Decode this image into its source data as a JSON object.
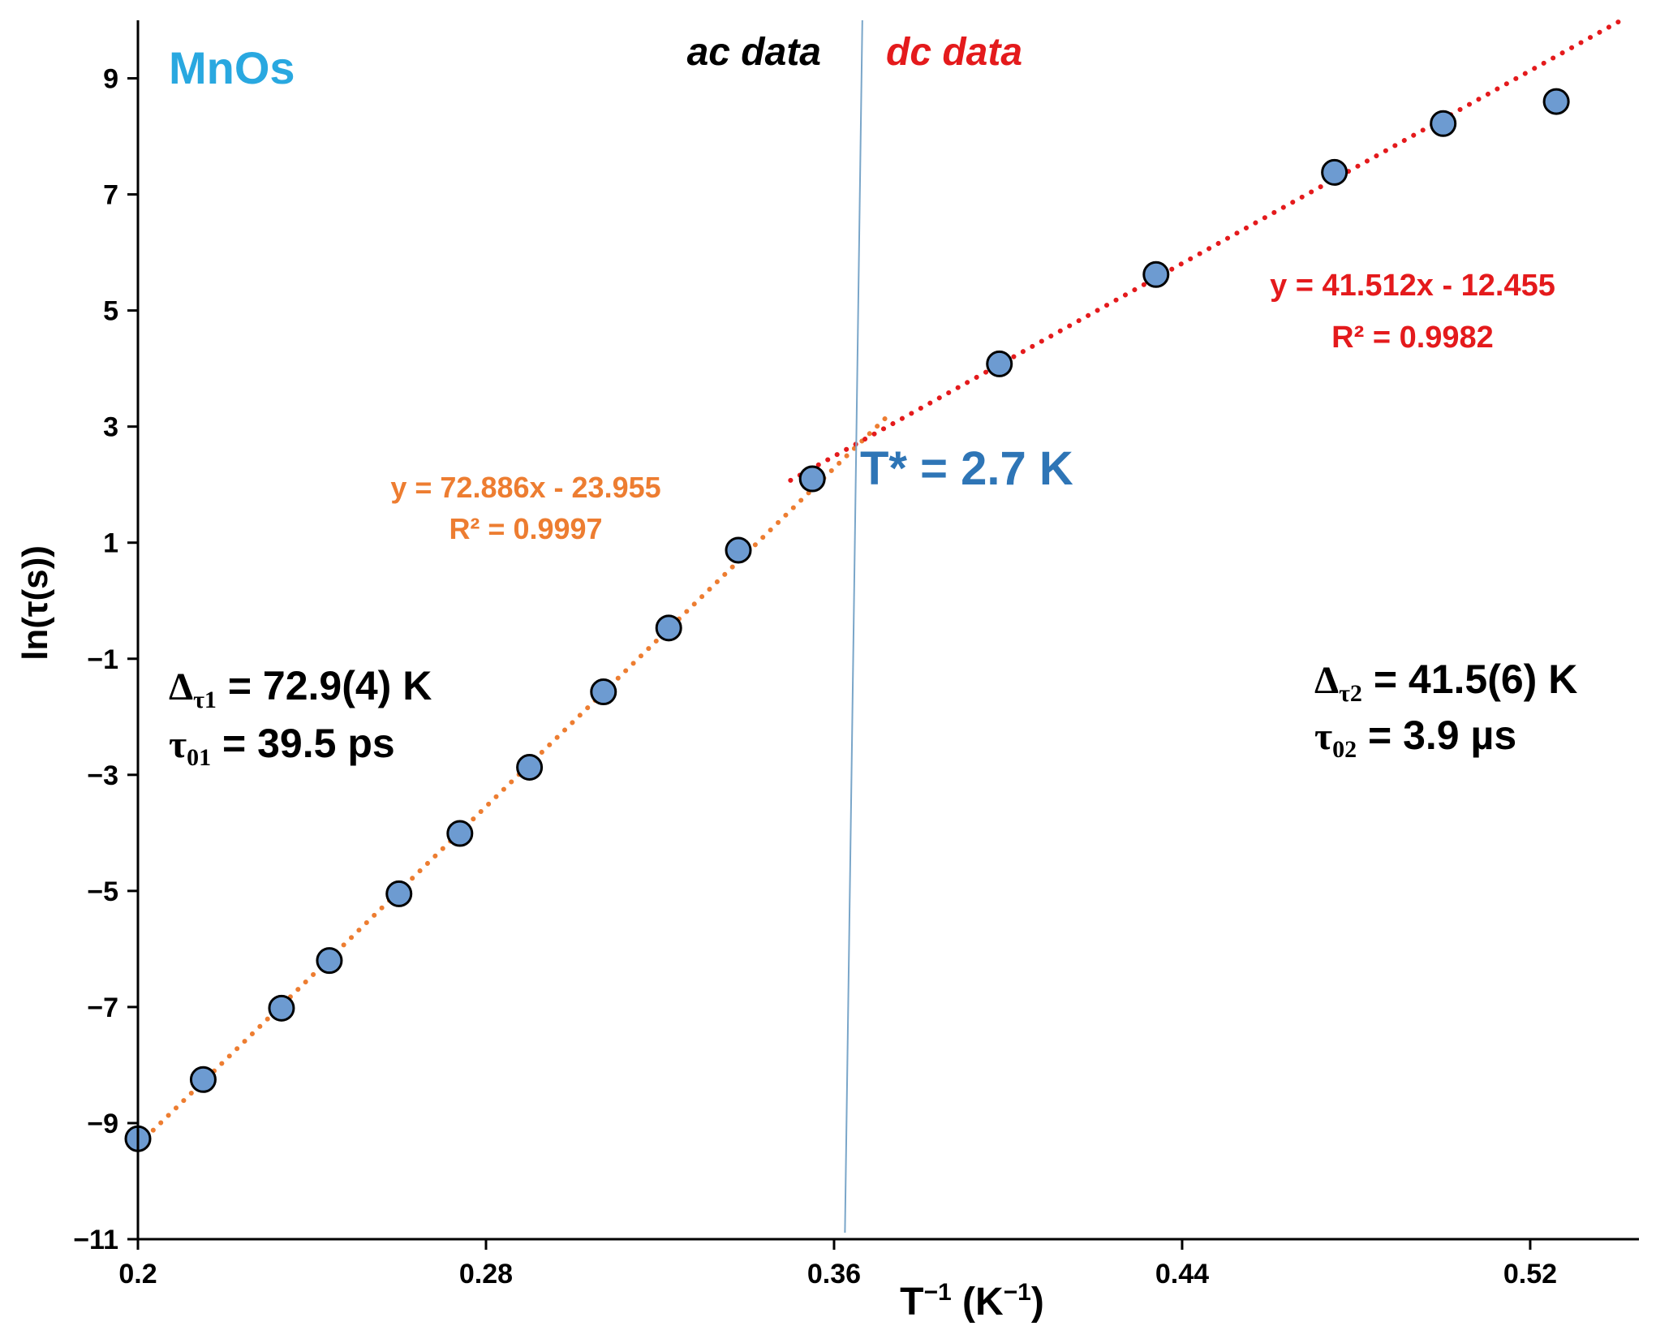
{
  "chart_data": {
    "type": "scatter",
    "title": "",
    "xlabel": "T⁻¹ (K⁻¹)",
    "xlabel_parts": {
      "base": "T",
      "exp1": "−1",
      "mid": " (K",
      "exp2": "−1",
      "end": ")"
    },
    "ylabel": "ln(τ(s))",
    "xlim": [
      0.2,
      0.545
    ],
    "ylim": [
      -11,
      10
    ],
    "xticks": [
      0.2,
      0.28,
      0.36,
      0.44,
      0.52
    ],
    "xtick_labels": [
      "0.2",
      "0.28",
      "0.36",
      "0.44",
      "0.52"
    ],
    "yticks": [
      9,
      7,
      5,
      3,
      1,
      -1,
      -3,
      -5,
      -7,
      -9,
      -11
    ],
    "ytick_labels": [
      "9",
      "7",
      "5",
      "3",
      "1",
      "−1",
      "−3",
      "−5",
      "−7",
      "−9",
      "−11"
    ],
    "grid": false,
    "series": [
      {
        "name": "ac data",
        "x": [
          0.2,
          0.215,
          0.233,
          0.244,
          0.26,
          0.274,
          0.29,
          0.307,
          0.322,
          0.338,
          0.355
        ],
        "y": [
          -9.27,
          -8.25,
          -7.02,
          -6.2,
          -5.05,
          -4.01,
          -2.87,
          -1.57,
          -0.47,
          0.87,
          2.1
        ]
      },
      {
        "name": "dc data",
        "x": [
          0.398,
          0.434,
          0.475,
          0.5,
          0.526
        ],
        "y": [
          4.08,
          5.62,
          7.38,
          8.22,
          8.6
        ]
      }
    ],
    "fits": [
      {
        "name": "ac fit",
        "slope": 72.886,
        "intercept": -23.955,
        "x_range": [
          0.2,
          0.373
        ],
        "equation": "y = 72.886x - 23.955",
        "r2_label": "R² = 0.9997",
        "color": "#ed7d31"
      },
      {
        "name": "dc fit",
        "slope": 41.512,
        "intercept": -12.455,
        "x_range": [
          0.35,
          0.541
        ],
        "equation": "y = 41.512x - 12.455",
        "r2_label": "R² = 0.9982",
        "color": "#e41a1c"
      }
    ],
    "divider": {
      "x_top": 0.3665,
      "x_bottom": 0.3625,
      "color": "#7aa6c9"
    },
    "annotations": {
      "sample": "MnOs",
      "ac_label": "ac data",
      "dc_label": "dc data",
      "tstar": "T* = 2.7 K",
      "delta1": {
        "symbol": "Δ",
        "sub": "τ1",
        "value": " = 72.9(4) K"
      },
      "tau01": {
        "symbol": "τ",
        "sub": "01",
        "value": " = 39.5 ps"
      },
      "delta2": {
        "symbol": "Δ",
        "sub": "τ2",
        "value": " = 41.5(6) K"
      },
      "tau02": {
        "symbol": "τ",
        "sub": "02",
        "value": " = 3.9 µs"
      }
    },
    "colors": {
      "marker_fill": "#6d9bd1",
      "marker_stroke": "#000000",
      "ac_fit": "#ed7d31",
      "dc_fit": "#e41a1c",
      "sample_label": "#29a8e0",
      "tstar_label": "#2e75b6",
      "ac_label": "#000000",
      "dc_label": "#e41a1c"
    }
  }
}
